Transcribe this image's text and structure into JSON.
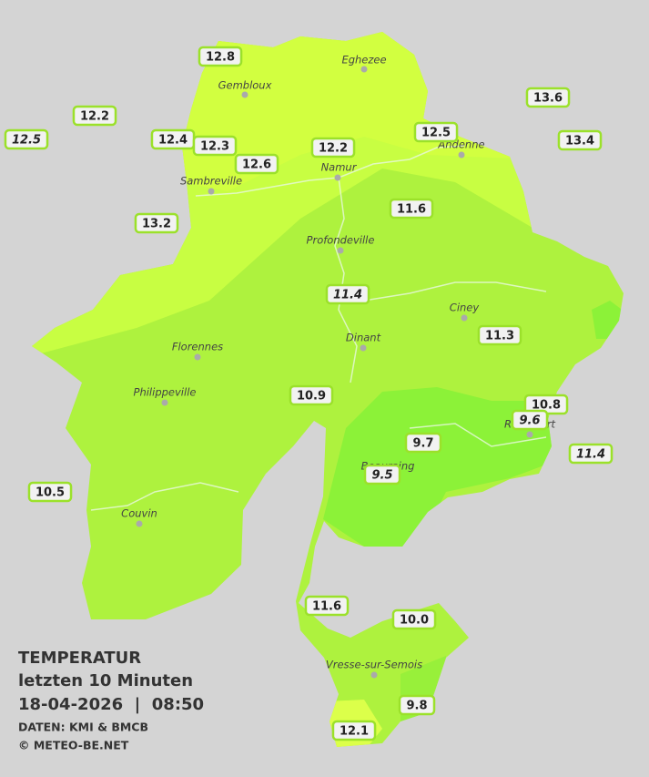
{
  "title": {
    "line1": "TEMPERATUR",
    "line2": "letzten 10 Minuten",
    "line3": "18-04-2026  |  08:50",
    "source": "DATEN: KMI & BMCB",
    "copyright": "© METEO-BE.NET"
  },
  "cities": [
    "Eghezee",
    "Gembloux",
    "Andenne",
    "Namur",
    "Sambreville",
    "Profondeville",
    "Ciney",
    "Dinant",
    "Florennes",
    "Philippeville",
    "Rochefort",
    "Beauraing",
    "Couvin",
    "Vresse-sur-Semois"
  ],
  "stations": [
    {
      "label": "12.8",
      "italic": false
    },
    {
      "label": "12.2",
      "italic": false
    },
    {
      "label": "12.5",
      "italic": true
    },
    {
      "label": "12.4",
      "italic": false
    },
    {
      "label": "12.3",
      "italic": false
    },
    {
      "label": "12.6",
      "italic": false
    },
    {
      "label": "12.2",
      "italic": false
    },
    {
      "label": "12.5",
      "italic": false
    },
    {
      "label": "13.6",
      "italic": false
    },
    {
      "label": "13.4",
      "italic": false
    },
    {
      "label": "13.2",
      "italic": false
    },
    {
      "label": "11.6",
      "italic": false
    },
    {
      "label": "11.4",
      "italic": true
    },
    {
      "label": "11.3",
      "italic": false
    },
    {
      "label": "10.9",
      "italic": false
    },
    {
      "label": "10.8",
      "italic": false
    },
    {
      "label": "9.6",
      "italic": true
    },
    {
      "label": "11.4",
      "italic": true
    },
    {
      "label": "9.7",
      "italic": false
    },
    {
      "label": "9.5",
      "italic": true
    },
    {
      "label": "10.5",
      "italic": false
    },
    {
      "label": "11.6",
      "italic": false
    },
    {
      "label": "10.0",
      "italic": false
    },
    {
      "label": "9.8",
      "italic": false
    },
    {
      "label": "12.1",
      "italic": false
    }
  ]
}
